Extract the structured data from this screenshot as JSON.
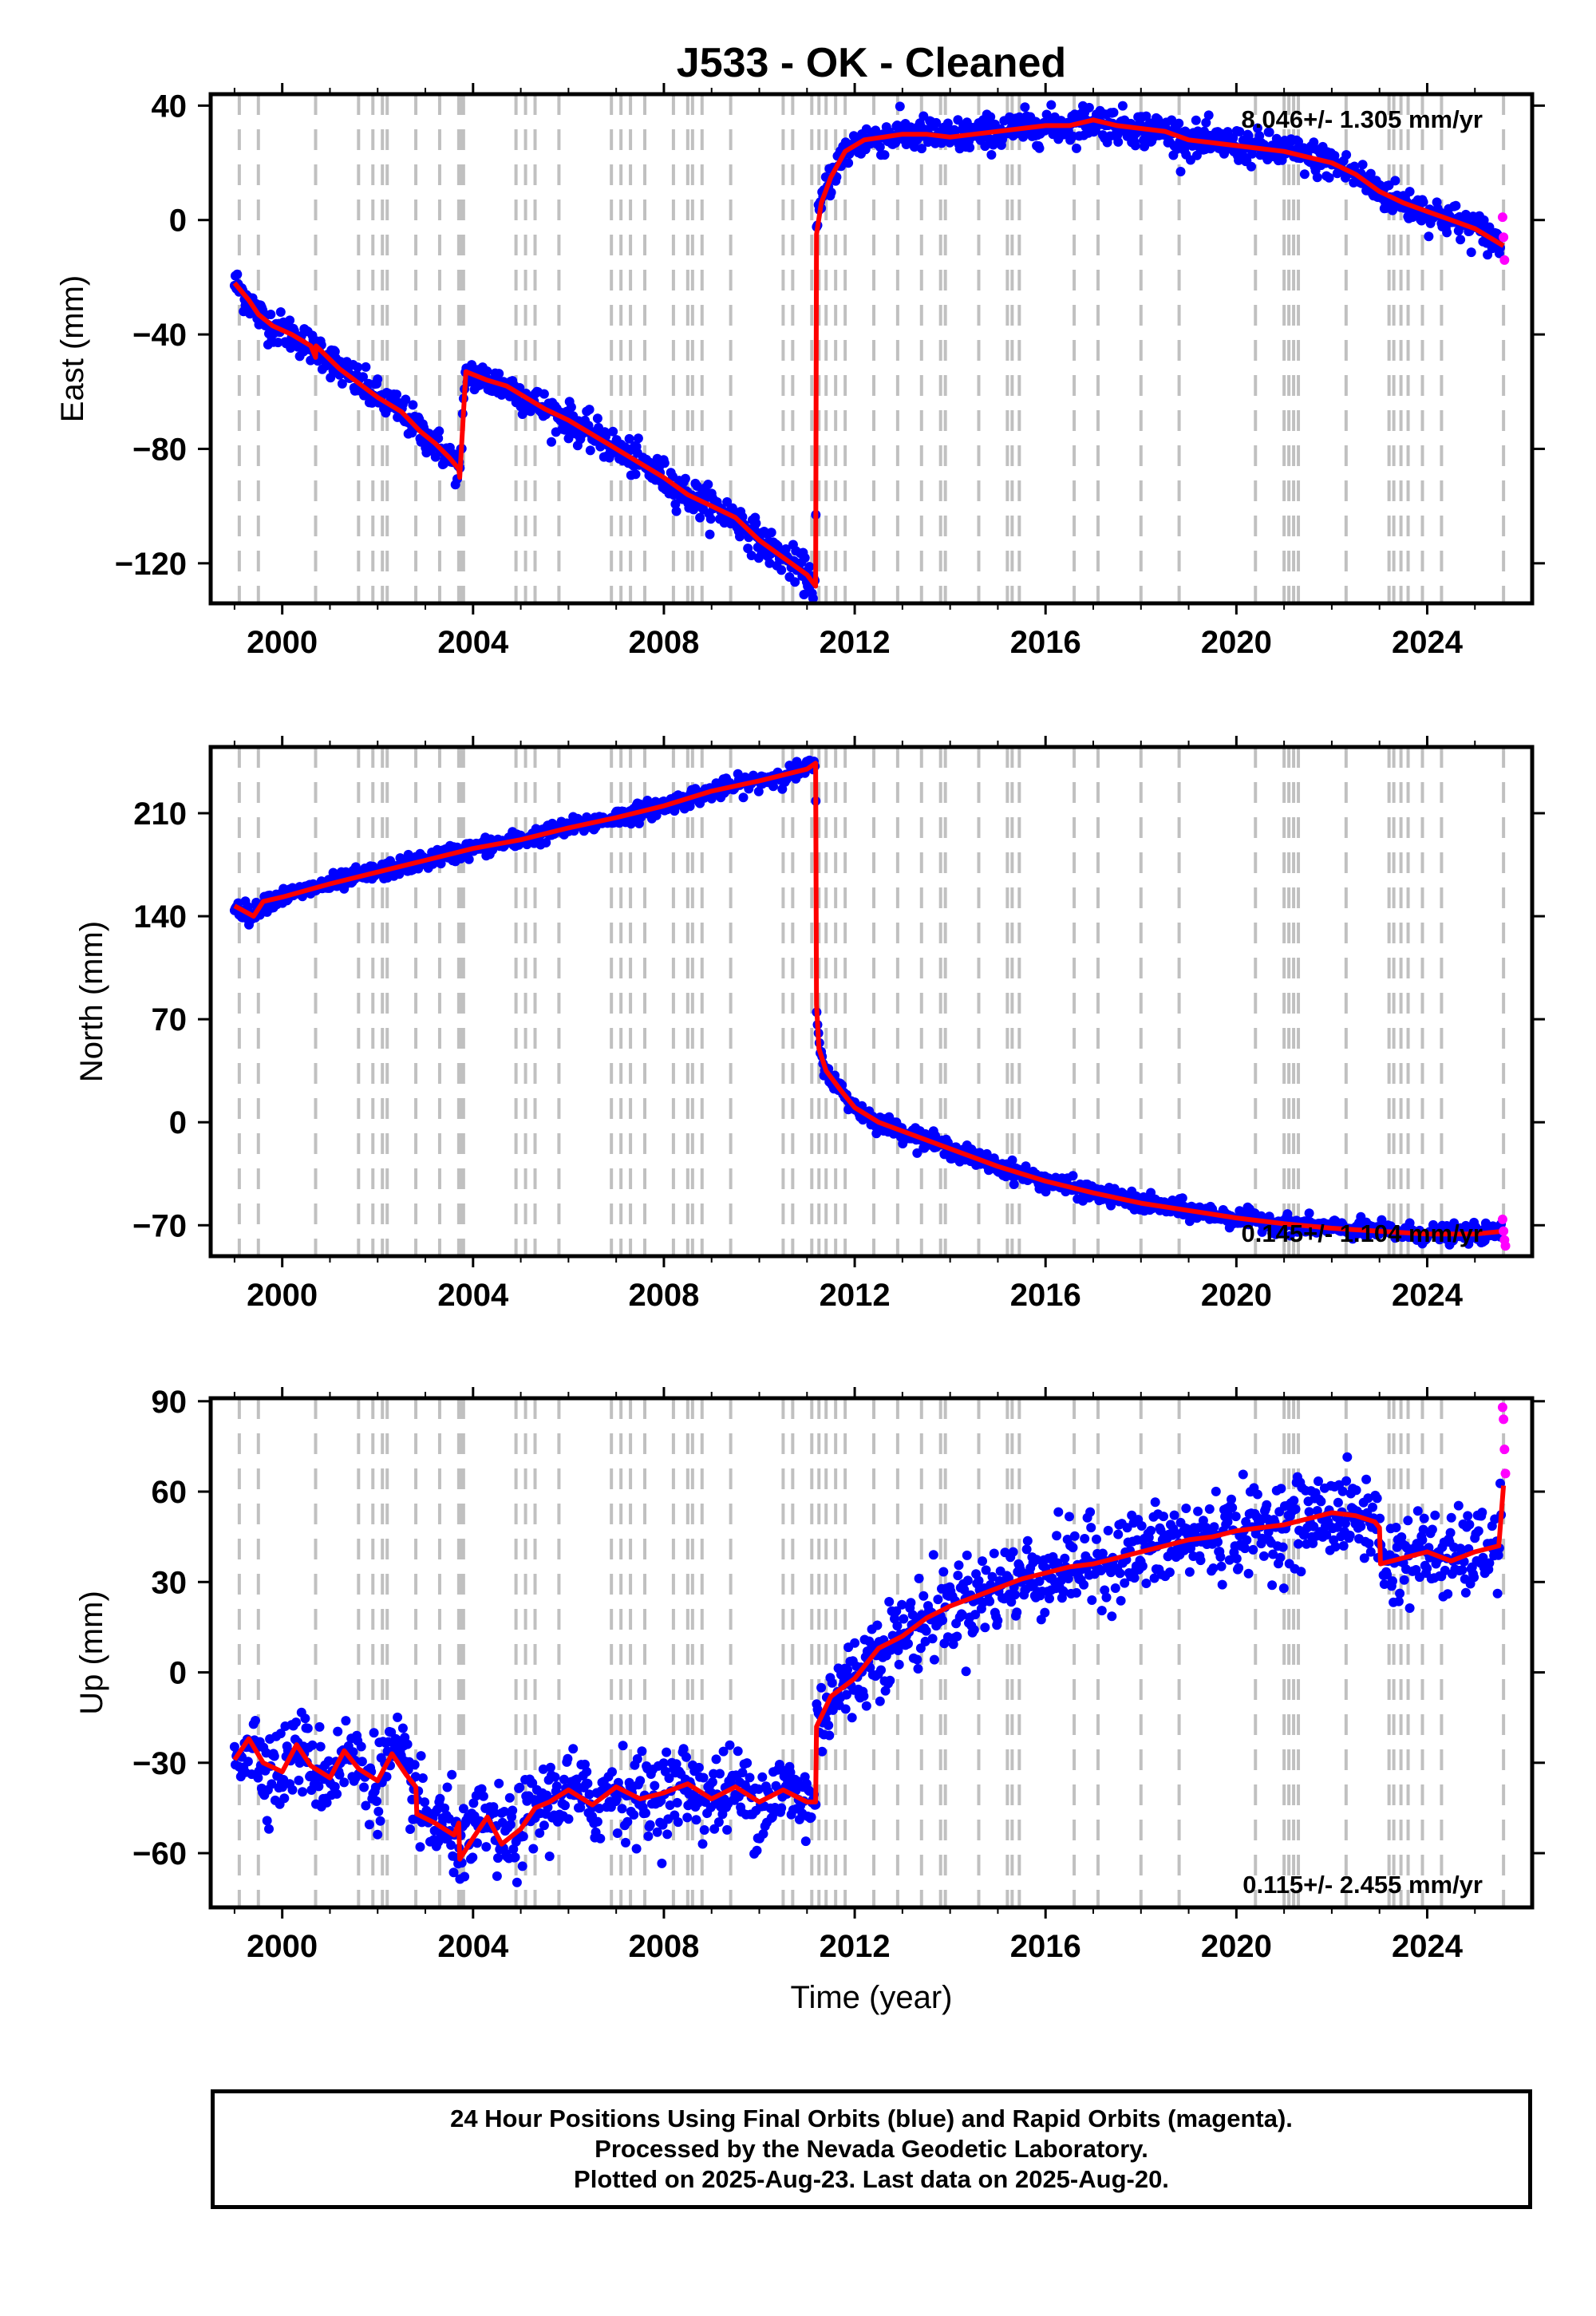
{
  "title": "J533  - OK - Cleaned",
  "x_axis_label": "Time (year)",
  "footer": {
    "line1": "24 Hour Positions Using Final Orbits (blue) and Rapid Orbits (magenta).",
    "line2": "Processed by the Nevada Geodetic Laboratory.",
    "line3": "Plotted on 2025-Aug-23. Last data on 2025-Aug-20."
  },
  "colors": {
    "final_orbits": "#0000ff",
    "rapid_orbits": "#ff00ff",
    "model": "#ff0000",
    "event_lines": "#c0c0c0"
  },
  "chart_data": [
    {
      "type": "scatter",
      "ylabel": "East (mm)",
      "xlim": [
        1998.5,
        2026.2
      ],
      "ylim": [
        -134,
        44
      ],
      "xticks": [
        2000,
        2004,
        2008,
        2012,
        2016,
        2020,
        2024
      ],
      "yticks": [
        -120,
        -80,
        -40,
        0,
        40
      ],
      "rate_label": "8.046+/- 1.305 mm/yr",
      "rate_position": "top-right",
      "model": {
        "x": [
          1999.0,
          1999.3,
          1999.5,
          1999.8,
          2000.2,
          2000.6,
          2000.7,
          2000.71,
          2001.2,
          2001.6,
          2002.0,
          2002.5,
          2002.9,
          2003.2,
          2003.5,
          2003.7,
          2003.72,
          2003.85,
          2004.3,
          2004.7,
          2005.0,
          2005.5,
          2006.0,
          2006.5,
          2007.0,
          2007.5,
          2008.0,
          2008.5,
          2009.0,
          2009.5,
          2010.0,
          2010.5,
          2011.0,
          2011.18,
          2011.2,
          2011.3,
          2011.5,
          2011.8,
          2012.2,
          2012.6,
          2013.0,
          2013.5,
          2014.0,
          2014.5,
          2015.0,
          2015.5,
          2016.0,
          2016.5,
          2017.0,
          2017.5,
          2018.0,
          2018.5,
          2019.0,
          2019.5,
          2020.0,
          2020.5,
          2021.0,
          2021.5,
          2022.0,
          2022.5,
          2023.0,
          2023.5,
          2024.0,
          2024.5,
          2025.0,
          2025.6
        ],
        "y": [
          -22,
          -28,
          -33,
          -37,
          -40,
          -44,
          -48,
          -44,
          -52,
          -57,
          -62,
          -67,
          -74,
          -78,
          -83,
          -87,
          -90,
          -53,
          -56,
          -58,
          -61,
          -66,
          -70,
          -75,
          -80,
          -85,
          -90,
          -96,
          -100,
          -104,
          -112,
          -118,
          -124,
          -128,
          -5,
          6,
          15,
          24,
          28,
          29,
          30,
          30,
          29,
          30,
          31,
          32,
          33,
          33,
          35,
          33,
          32,
          31,
          28,
          27,
          26,
          25,
          24,
          22,
          20,
          16,
          10,
          6,
          3,
          0,
          -3,
          -9
        ]
      },
      "final_orbits": {
        "x_start": 1999.0,
        "x_end": 2025.55,
        "scatter_mm": 3
      },
      "rapid_orbits": {
        "x": [
          2025.58,
          2025.6,
          2025.62
        ],
        "y": [
          1,
          -6,
          -14
        ]
      },
      "event_lines": [
        1999.1,
        1999.5,
        2000.7,
        2001.6,
        2001.9,
        2002.1,
        2002.2,
        2002.8,
        2003.3,
        2003.7,
        2003.75,
        2003.8,
        2004.9,
        2005.1,
        2005.3,
        2005.8,
        2006.9,
        2007.1,
        2007.3,
        2007.6,
        2008.2,
        2008.5,
        2008.6,
        2008.8,
        2009.4,
        2010.5,
        2010.7,
        2011.1,
        2011.25,
        2011.4,
        2011.6,
        2011.8,
        2012.4,
        2012.9,
        2013.4,
        2013.8,
        2013.9,
        2014.6,
        2015.2,
        2015.3,
        2015.45,
        2016.6,
        2017.1,
        2018.0,
        2018.8,
        2020.4,
        2021.0,
        2021.1,
        2021.2,
        2021.3,
        2022.3,
        2023.2,
        2023.3,
        2023.45,
        2023.6,
        2023.9,
        2024.3,
        2025.6
      ]
    },
    {
      "type": "scatter",
      "ylabel": "North (mm)",
      "xlim": [
        1998.5,
        2026.2
      ],
      "ylim": [
        -91,
        255
      ],
      "xticks": [
        2000,
        2004,
        2008,
        2012,
        2016,
        2020,
        2024
      ],
      "yticks": [
        -70,
        0,
        70,
        140,
        210
      ],
      "rate_label": "0.145+/- 1.104 mm/yr",
      "rate_position": "bottom-right",
      "model": {
        "x": [
          1999.0,
          1999.4,
          1999.6,
          2000.0,
          2001.0,
          2002.0,
          2003.0,
          2004.0,
          2005.0,
          2006.0,
          2007.0,
          2008.0,
          2009.0,
          2010.0,
          2011.0,
          2011.18,
          2011.2,
          2011.25,
          2011.4,
          2011.7,
          2012.0,
          2012.5,
          2013.0,
          2014.0,
          2015.0,
          2016.0,
          2017.0,
          2018.0,
          2019.0,
          2020.0,
          2021.0,
          2022.0,
          2023.0,
          2024.0,
          2025.0,
          2025.6
        ],
        "y": [
          147,
          140,
          150,
          153,
          162,
          170,
          178,
          186,
          192,
          200,
          207,
          215,
          225,
          232,
          240,
          244,
          80,
          50,
          35,
          22,
          10,
          0,
          -6,
          -18,
          -30,
          -40,
          -48,
          -55,
          -60,
          -65,
          -69,
          -72,
          -74,
          -76,
          -76,
          -74
        ]
      },
      "final_orbits": {
        "x_start": 1999.0,
        "x_end": 2025.55,
        "scatter_mm": 3
      },
      "rapid_orbits": {
        "x": [
          2025.58,
          2025.6,
          2025.62,
          2025.64
        ],
        "y": [
          -66,
          -74,
          -80,
          -84
        ]
      },
      "event_lines": [
        1999.1,
        1999.5,
        2000.7,
        2001.6,
        2001.9,
        2002.1,
        2002.2,
        2002.8,
        2003.3,
        2003.7,
        2003.75,
        2003.8,
        2004.9,
        2005.1,
        2005.3,
        2005.8,
        2006.9,
        2007.1,
        2007.3,
        2007.6,
        2008.2,
        2008.5,
        2008.6,
        2008.8,
        2009.4,
        2010.5,
        2010.7,
        2011.1,
        2011.25,
        2011.4,
        2011.6,
        2011.8,
        2012.4,
        2012.9,
        2013.4,
        2013.8,
        2013.9,
        2014.6,
        2015.2,
        2015.3,
        2015.45,
        2016.6,
        2017.1,
        2018.0,
        2018.8,
        2020.4,
        2021.0,
        2021.1,
        2021.2,
        2021.3,
        2022.3,
        2023.2,
        2023.3,
        2023.45,
        2023.6,
        2023.9,
        2024.3,
        2025.6
      ]
    },
    {
      "type": "scatter",
      "ylabel": "Up (mm)",
      "xlim": [
        1998.5,
        2026.2
      ],
      "ylim": [
        -78,
        91
      ],
      "xticks": [
        2000,
        2004,
        2008,
        2012,
        2016,
        2020,
        2024
      ],
      "yticks": [
        -60,
        -30,
        0,
        30,
        60,
        90
      ],
      "rate_label": "0.115+/- 2.455 mm/yr",
      "rate_position": "bottom-right",
      "model": {
        "x": [
          1999.0,
          1999.3,
          1999.6,
          2000.0,
          2000.3,
          2000.6,
          2001.0,
          2001.3,
          2001.6,
          2002.0,
          2002.3,
          2002.6,
          2002.8,
          2002.82,
          2003.2,
          2003.6,
          2003.7,
          2003.72,
          2004.0,
          2004.3,
          2004.6,
          2005.0,
          2005.3,
          2005.6,
          2006.0,
          2006.5,
          2007.0,
          2007.5,
          2008.0,
          2008.5,
          2009.0,
          2009.5,
          2010.0,
          2010.5,
          2011.0,
          2011.18,
          2011.2,
          2011.5,
          2012.0,
          2012.5,
          2013.0,
          2013.5,
          2014.0,
          2014.5,
          2015.0,
          2015.5,
          2016.0,
          2016.5,
          2017.0,
          2017.5,
          2018.0,
          2018.5,
          2019.0,
          2019.5,
          2020.0,
          2020.5,
          2021.0,
          2021.5,
          2022.0,
          2022.5,
          2022.9,
          2023.0,
          2023.02,
          2023.5,
          2024.0,
          2024.5,
          2025.0,
          2025.5,
          2025.6
        ],
        "y": [
          -29,
          -22,
          -30,
          -33,
          -24,
          -31,
          -35,
          -26,
          -32,
          -36,
          -27,
          -34,
          -38,
          -47,
          -50,
          -54,
          -50,
          -62,
          -55,
          -48,
          -57,
          -52,
          -45,
          -43,
          -39,
          -44,
          -38,
          -42,
          -40,
          -37,
          -42,
          -38,
          -43,
          -39,
          -43,
          -43,
          -18,
          -8,
          -2,
          8,
          12,
          18,
          22,
          25,
          28,
          31,
          33,
          35,
          36,
          38,
          40,
          42,
          44,
          45,
          47,
          48,
          49,
          51,
          53,
          52,
          50,
          48,
          36,
          38,
          40,
          37,
          40,
          42,
          62
        ]
      },
      "final_orbits": {
        "x_start": 1999.0,
        "x_end": 2025.55,
        "scatter_mm": 7
      },
      "rapid_orbits": {
        "x": [
          2025.58,
          2025.6,
          2025.62,
          2025.64
        ],
        "y": [
          88,
          84,
          74,
          66
        ]
      },
      "event_lines": [
        1999.1,
        1999.5,
        2000.7,
        2001.6,
        2001.9,
        2002.1,
        2002.2,
        2002.8,
        2003.3,
        2003.7,
        2003.75,
        2003.8,
        2004.9,
        2005.1,
        2005.3,
        2005.8,
        2006.9,
        2007.1,
        2007.3,
        2007.6,
        2008.2,
        2008.5,
        2008.6,
        2008.8,
        2009.4,
        2010.5,
        2010.7,
        2011.1,
        2011.25,
        2011.4,
        2011.6,
        2011.8,
        2012.4,
        2012.9,
        2013.4,
        2013.8,
        2013.9,
        2014.6,
        2015.2,
        2015.3,
        2015.45,
        2016.6,
        2017.1,
        2018.0,
        2018.8,
        2020.4,
        2021.0,
        2021.1,
        2021.2,
        2021.3,
        2022.3,
        2023.2,
        2023.3,
        2023.45,
        2023.6,
        2023.9,
        2024.3,
        2025.6
      ]
    }
  ]
}
